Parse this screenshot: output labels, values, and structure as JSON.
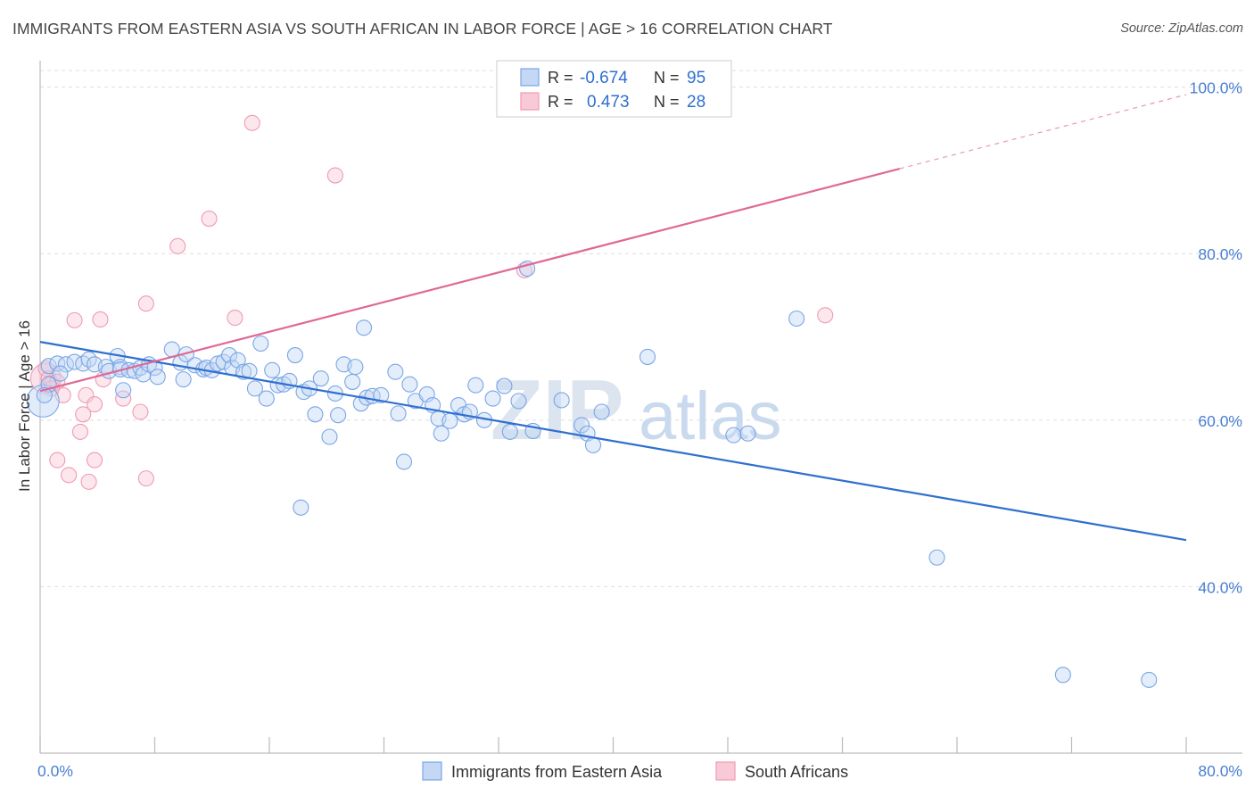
{
  "chart_data": {
    "type": "scatter",
    "title": "IMMIGRANTS FROM EASTERN ASIA VS SOUTH AFRICAN IN LABOR FORCE | AGE > 16 CORRELATION CHART",
    "source": "Source: ZipAtlas.com",
    "ylabel": "In Labor Force | Age > 16",
    "xlabel": "",
    "xlim": [
      0,
      80
    ],
    "ylim": [
      20,
      102
    ],
    "x_tick_labels": [
      "0.0%",
      "80.0%"
    ],
    "y_ticks": [
      40,
      60,
      80,
      100
    ],
    "y_tick_labels": [
      "40.0%",
      "60.0%",
      "80.0%",
      "100.0%"
    ],
    "grid": "horizontal dashed",
    "watermark": {
      "zip": "ZIP",
      "atlas": "atlas"
    },
    "legend_box": {
      "rows": [
        {
          "r_label": "R =",
          "r_value": "-0.674",
          "n_label": "N =",
          "n_value": "95"
        },
        {
          "r_label": "R =",
          "r_value": "0.473",
          "n_label": "N =",
          "n_value": "28"
        }
      ]
    },
    "series": [
      {
        "name": "Immigrants from Eastern Asia",
        "color": "#7aa6e6",
        "line_color": "#2f6fcf",
        "trend": {
          "x": [
            0,
            80
          ],
          "y": [
            69.4,
            45.6
          ]
        },
        "points": [
          [
            0.6,
            66.5
          ],
          [
            0.6,
            64.3
          ],
          [
            1.2,
            66.8
          ],
          [
            1.8,
            66.7
          ],
          [
            2.4,
            67.0
          ],
          [
            3.0,
            66.8
          ],
          [
            3.4,
            67.3
          ],
          [
            3.8,
            66.7
          ],
          [
            4.6,
            66.4
          ],
          [
            4.8,
            65.9
          ],
          [
            5.4,
            67.7
          ],
          [
            5.6,
            66.4
          ],
          [
            5.6,
            66.1
          ],
          [
            5.8,
            63.6
          ],
          [
            6.2,
            66.0
          ],
          [
            6.6,
            65.9
          ],
          [
            7.0,
            66.3
          ],
          [
            7.2,
            65.5
          ],
          [
            7.6,
            66.7
          ],
          [
            8.0,
            66.3
          ],
          [
            8.2,
            65.2
          ],
          [
            9.2,
            68.5
          ],
          [
            9.8,
            66.9
          ],
          [
            10.0,
            64.9
          ],
          [
            10.2,
            67.9
          ],
          [
            10.8,
            66.6
          ],
          [
            11.4,
            66.1
          ],
          [
            11.6,
            66.3
          ],
          [
            12.0,
            66.0
          ],
          [
            12.4,
            66.8
          ],
          [
            12.8,
            67.0
          ],
          [
            13.2,
            67.8
          ],
          [
            13.4,
            66.3
          ],
          [
            13.8,
            67.2
          ],
          [
            14.2,
            65.8
          ],
          [
            14.6,
            65.9
          ],
          [
            15.0,
            63.8
          ],
          [
            15.4,
            69.2
          ],
          [
            15.8,
            62.6
          ],
          [
            16.2,
            66.0
          ],
          [
            16.6,
            64.2
          ],
          [
            17.0,
            64.3
          ],
          [
            17.4,
            64.7
          ],
          [
            17.8,
            67.8
          ],
          [
            18.4,
            63.4
          ],
          [
            18.8,
            63.8
          ],
          [
            19.2,
            60.7
          ],
          [
            19.6,
            65.0
          ],
          [
            20.2,
            58.0
          ],
          [
            20.6,
            63.2
          ],
          [
            20.8,
            60.6
          ],
          [
            21.2,
            66.7
          ],
          [
            21.8,
            64.6
          ],
          [
            22.0,
            66.4
          ],
          [
            22.4,
            62.0
          ],
          [
            22.6,
            71.1
          ],
          [
            22.8,
            62.7
          ],
          [
            23.2,
            62.9
          ],
          [
            23.8,
            63.0
          ],
          [
            24.8,
            65.8
          ],
          [
            25.0,
            60.8
          ],
          [
            25.4,
            55.0
          ],
          [
            25.8,
            64.3
          ],
          [
            26.2,
            62.3
          ],
          [
            27.0,
            63.1
          ],
          [
            27.4,
            61.8
          ],
          [
            27.8,
            60.2
          ],
          [
            28.0,
            58.4
          ],
          [
            28.6,
            59.9
          ],
          [
            29.2,
            61.8
          ],
          [
            29.6,
            60.7
          ],
          [
            30.0,
            61.0
          ],
          [
            30.4,
            64.2
          ],
          [
            31.0,
            60.0
          ],
          [
            31.6,
            62.6
          ],
          [
            32.4,
            64.1
          ],
          [
            32.8,
            58.6
          ],
          [
            33.4,
            62.3
          ],
          [
            34.0,
            78.2
          ],
          [
            34.4,
            58.7
          ],
          [
            36.4,
            62.4
          ],
          [
            37.8,
            59.4
          ],
          [
            38.2,
            58.4
          ],
          [
            38.6,
            57.0
          ],
          [
            39.2,
            61.0
          ],
          [
            18.2,
            49.5
          ],
          [
            42.4,
            67.6
          ],
          [
            48.4,
            58.2
          ],
          [
            49.4,
            58.4
          ],
          [
            52.8,
            72.2
          ],
          [
            62.6,
            43.5
          ],
          [
            71.4,
            29.4
          ],
          [
            77.4,
            28.8
          ],
          [
            0.3,
            63.0
          ],
          [
            1.4,
            65.6
          ]
        ]
      },
      {
        "name": "South Africans",
        "color": "#f19ab5",
        "line_color": "#e06895",
        "trend": {
          "x": [
            0,
            60
          ],
          "y": [
            63.5,
            90.2
          ]
        },
        "trend_extension": {
          "x": [
            60,
            80
          ],
          "y": [
            90.2,
            99.1
          ]
        },
        "points": [
          [
            0.4,
            66.2
          ],
          [
            0.6,
            65.0
          ],
          [
            0.8,
            64.4
          ],
          [
            1.2,
            64.6
          ],
          [
            1.6,
            63.0
          ],
          [
            2.0,
            53.4
          ],
          [
            2.4,
            72.0
          ],
          [
            2.8,
            58.6
          ],
          [
            3.0,
            60.7
          ],
          [
            3.2,
            63.0
          ],
          [
            3.4,
            52.6
          ],
          [
            3.8,
            55.2
          ],
          [
            3.8,
            61.9
          ],
          [
            4.2,
            72.1
          ],
          [
            4.4,
            64.9
          ],
          [
            5.8,
            62.6
          ],
          [
            7.0,
            61.0
          ],
          [
            7.4,
            53.0
          ],
          [
            7.4,
            74.0
          ],
          [
            9.6,
            80.9
          ],
          [
            11.8,
            84.2
          ],
          [
            13.6,
            72.3
          ],
          [
            14.8,
            95.7
          ],
          [
            20.6,
            89.4
          ],
          [
            33.8,
            78.0
          ],
          [
            54.8,
            72.6
          ],
          [
            1.2,
            55.2
          ],
          [
            0.8,
            63.8
          ]
        ]
      }
    ]
  }
}
